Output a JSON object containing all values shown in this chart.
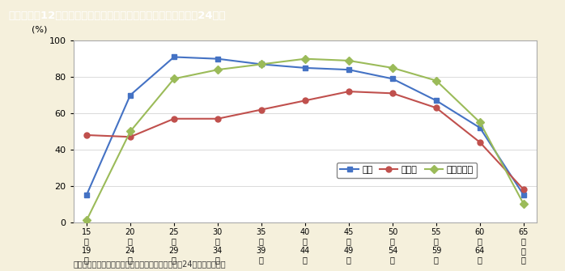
{
  "title": "第１－特－12図　女性の年齢階級別配偶関係別労働力率（平成24年）",
  "footnote": "（備考）総務省「労働力調査（基本統計）」（平成24年）より作成。",
  "x_labels": [
    "15\n〜\n19\n歳",
    "20\n〜\n24\n歳",
    "25\n〜\n29\n歳",
    "30\n〜\n34\n歳",
    "35\n〜\n39\n歳",
    "40\n〜\n44\n歳",
    "45\n〜\n49\n歳",
    "50\n〜\n54\n歳",
    "55\n〜\n59\n歳",
    "60\n〜\n64\n歳",
    "65\n歳\n以\n上"
  ],
  "x_values": [
    0,
    1,
    2,
    3,
    4,
    5,
    6,
    7,
    8,
    9,
    10
  ],
  "unmarried": [
    15,
    70,
    91,
    90,
    87,
    85,
    84,
    79,
    67,
    52,
    15
  ],
  "married": [
    48,
    47,
    57,
    57,
    62,
    67,
    72,
    71,
    63,
    44,
    18
  ],
  "widowed_divorced": [
    1,
    50,
    79,
    84,
    87,
    90,
    89,
    85,
    78,
    55,
    10
  ],
  "color_unmarried": "#4472c4",
  "color_married": "#c0504d",
  "color_widowed": "#9bbb59",
  "ylabel": "(%)",
  "ylim": [
    0,
    100
  ],
  "yticks": [
    0,
    20,
    40,
    60,
    80,
    100
  ],
  "legend_unmarried": "未婚",
  "legend_married": "有配偶",
  "legend_widowed": "死別・離別",
  "bg_color": "#f5f0dc",
  "plot_bg_color": "#ffffff",
  "title_bg_color": "#8B6914",
  "title_text_color": "#ffffff"
}
